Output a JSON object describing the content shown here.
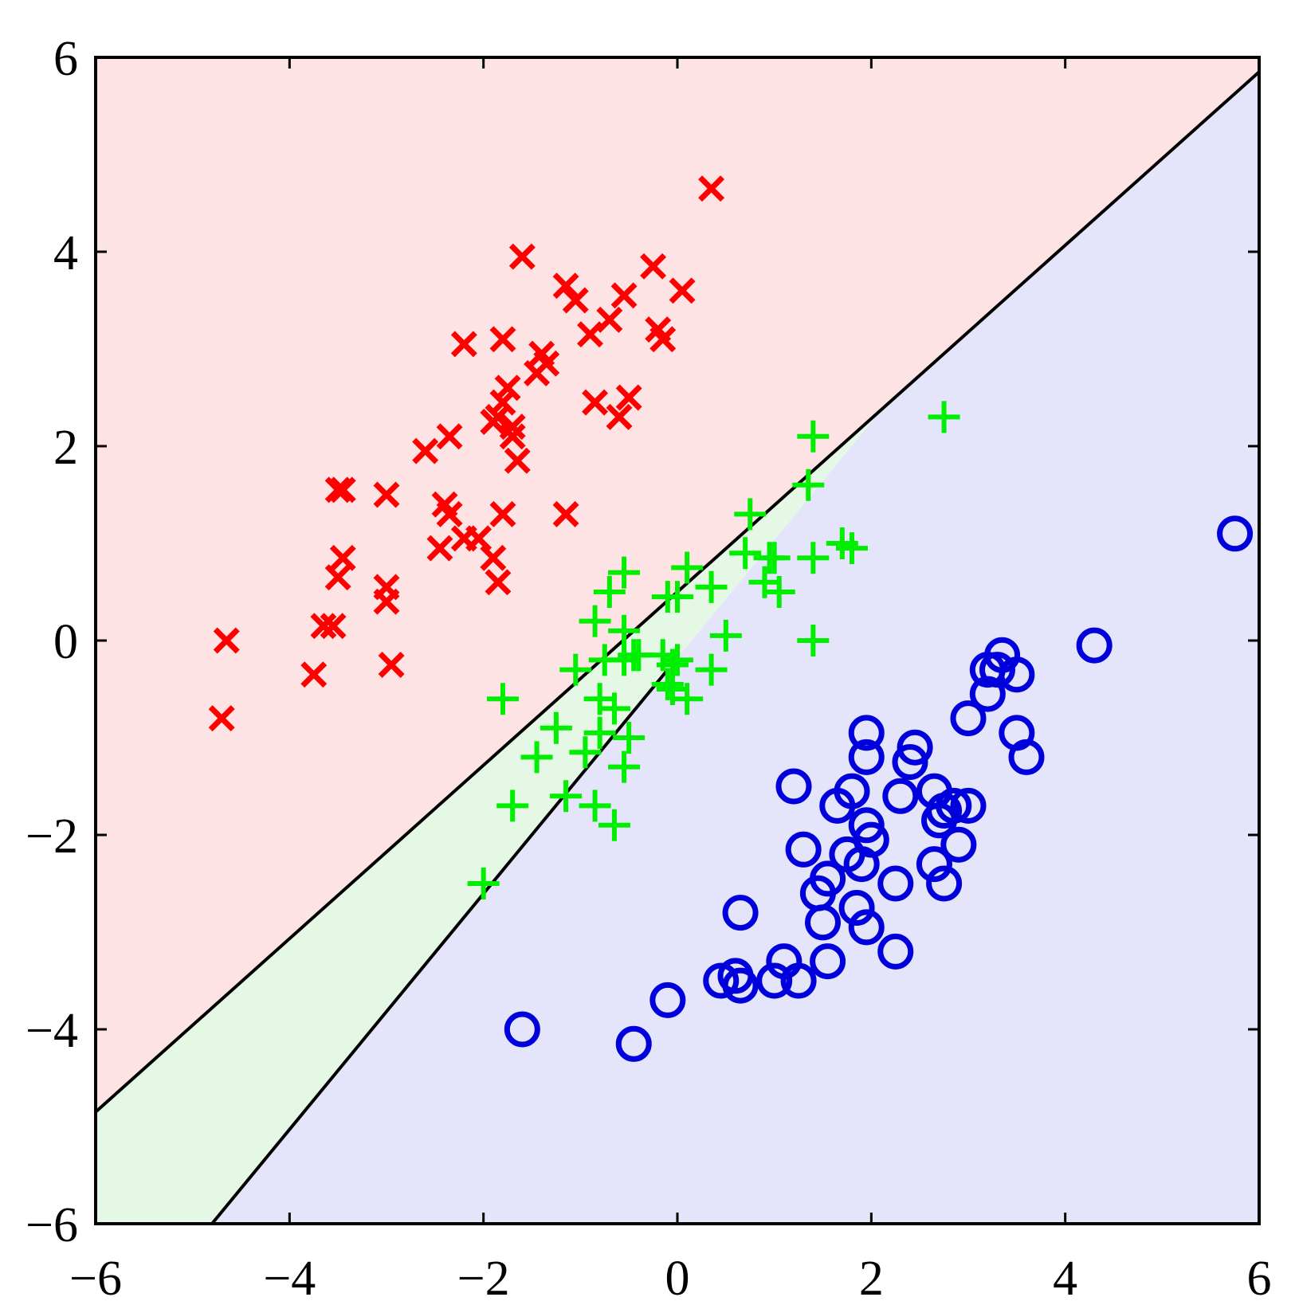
{
  "chart_data": {
    "type": "scatter",
    "title": "",
    "xlabel": "",
    "ylabel": "",
    "xlim": [
      -6,
      6
    ],
    "ylim": [
      -6,
      6
    ],
    "grid": false,
    "legend": "none",
    "xticks": [
      -6,
      -4,
      -2,
      0,
      2,
      4,
      6
    ],
    "yticks": [
      -6,
      -4,
      -2,
      0,
      2,
      4,
      6
    ],
    "xtick_labels": [
      "−6",
      "−4",
      "−2",
      "0",
      "2",
      "4",
      "6"
    ],
    "ytick_labels": [
      "−6",
      "−4",
      "−2",
      "0",
      "2",
      "4",
      "6"
    ],
    "decision_boundaries": [
      {
        "points": [
          [
            -6,
            -4.85
          ],
          [
            6,
            5.85
          ]
        ]
      },
      {
        "points": [
          [
            -4.8,
            -6
          ],
          [
            -0.1,
            -0.3
          ]
        ]
      }
    ],
    "regions": [
      {
        "class": "red",
        "color": "#fde3e3"
      },
      {
        "class": "green",
        "color": "#e5f8e5"
      },
      {
        "class": "blue",
        "color": "#e4e4fa"
      }
    ],
    "series": [
      {
        "marker": "x",
        "color": "#ff0000",
        "x": [
          0.35,
          -1.6,
          -1.15,
          -1.05,
          -0.55,
          -0.25,
          0.05,
          -0.7,
          -0.9,
          -0.2,
          -0.15,
          -1.8,
          -2.2,
          -1.4,
          -1.35,
          -1.45,
          -1.75,
          -1.85,
          -1.7,
          -1.9,
          -1.8,
          -1.65,
          -0.85,
          -0.6,
          -0.5,
          -2.6,
          -2.35,
          -1.7,
          -3.5,
          -3.45,
          -3.0,
          -2.4,
          -2.35,
          -1.8,
          -1.15,
          -2.45,
          -2.2,
          -2.05,
          -1.9,
          -1.85,
          -3.45,
          -3.5,
          -3.0,
          -3.0,
          -3.65,
          -3.55,
          -4.65,
          -3.75,
          -2.95,
          -4.7
        ],
        "y": [
          4.65,
          3.95,
          3.65,
          3.5,
          3.55,
          3.85,
          3.6,
          3.3,
          3.15,
          3.2,
          3.1,
          3.1,
          3.05,
          2.95,
          2.85,
          2.75,
          2.6,
          2.3,
          2.2,
          2.25,
          2.45,
          1.85,
          2.45,
          2.3,
          2.5,
          1.95,
          2.1,
          2.1,
          1.55,
          1.55,
          1.5,
          1.4,
          1.3,
          1.3,
          1.3,
          0.95,
          1.05,
          1.05,
          0.85,
          0.6,
          0.85,
          0.65,
          0.55,
          0.4,
          0.15,
          0.15,
          0.0,
          -0.35,
          -0.25,
          -0.8
        ]
      },
      {
        "marker": "+",
        "color": "#00ee00",
        "x": [
          2.75,
          1.4,
          1.35,
          0.75,
          0.7,
          0.95,
          1.0,
          1.4,
          1.7,
          1.8,
          0.9,
          1.05,
          -0.55,
          -0.7,
          0.1,
          0.35,
          -0.1,
          0.0,
          -0.85,
          -0.55,
          0.5,
          1.4,
          -0.45,
          -0.4,
          -0.15,
          -0.05,
          0.0,
          0.35,
          -1.05,
          -0.75,
          -0.55,
          -0.1,
          -0.05,
          0.1,
          -1.8,
          -0.8,
          -0.65,
          -1.25,
          -0.8,
          -0.5,
          -1.45,
          -0.95,
          -0.55,
          -1.15,
          -0.85,
          -1.7,
          -0.65,
          -2.0
        ],
        "y": [
          2.3,
          2.1,
          1.6,
          1.3,
          0.9,
          0.85,
          0.85,
          0.85,
          1.0,
          0.95,
          0.6,
          0.5,
          0.7,
          0.5,
          0.75,
          0.55,
          0.45,
          0.45,
          0.2,
          0.1,
          0.05,
          0.0,
          -0.15,
          -0.15,
          -0.15,
          -0.25,
          -0.2,
          -0.3,
          -0.3,
          -0.2,
          -0.2,
          -0.45,
          -0.5,
          -0.6,
          -0.6,
          -0.6,
          -0.7,
          -0.9,
          -0.95,
          -1.0,
          -1.2,
          -1.15,
          -1.3,
          -1.6,
          -1.7,
          -1.7,
          -1.9,
          -2.5
        ]
      },
      {
        "marker": "o",
        "color": "#0000dd",
        "x": [
          5.75,
          4.3,
          3.35,
          3.2,
          3.3,
          3.5,
          3.2,
          3.0,
          3.5,
          3.6,
          1.95,
          2.45,
          1.95,
          2.4,
          1.2,
          1.8,
          1.65,
          2.3,
          2.65,
          2.85,
          3.0,
          2.75,
          2.7,
          1.95,
          2.0,
          1.3,
          1.75,
          1.9,
          2.9,
          2.65,
          2.25,
          2.75,
          1.55,
          1.45,
          1.5,
          0.65,
          1.85,
          1.95,
          1.1,
          0.6,
          0.45,
          0.65,
          1.0,
          1.25,
          1.55,
          2.25,
          -0.1,
          -1.6,
          -0.45
        ],
        "y": [
          1.1,
          -0.05,
          -0.15,
          -0.3,
          -0.3,
          -0.35,
          -0.55,
          -0.8,
          -0.95,
          -1.2,
          -0.95,
          -1.1,
          -1.2,
          -1.25,
          -1.5,
          -1.55,
          -1.7,
          -1.6,
          -1.55,
          -1.7,
          -1.7,
          -1.75,
          -1.85,
          -1.9,
          -2.05,
          -2.15,
          -2.2,
          -2.3,
          -2.1,
          -2.3,
          -2.5,
          -2.5,
          -2.45,
          -2.6,
          -2.9,
          -2.8,
          -2.75,
          -2.95,
          -3.3,
          -3.45,
          -3.5,
          -3.55,
          -3.5,
          -3.5,
          -3.3,
          -3.2,
          -3.7,
          -4.0,
          -4.15
        ]
      }
    ]
  }
}
